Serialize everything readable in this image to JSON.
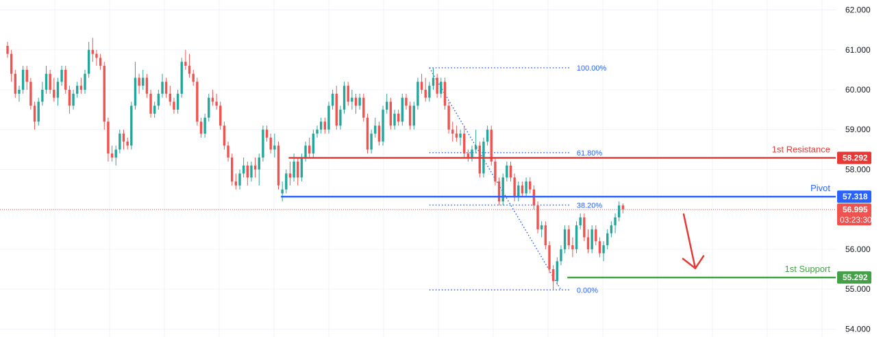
{
  "chart_data": {
    "type": "candlestick",
    "y_axis": {
      "range": [
        53.8,
        62.25
      ],
      "ticks": [
        "62.000",
        "61.000",
        "60.000",
        "59.000",
        "58.000",
        "57.000",
        "56.000",
        "55.000",
        "54.000"
      ]
    },
    "grid": true,
    "colors": {
      "up": "#26a69a",
      "down": "#ef5350",
      "grid": "#f0f3fa",
      "fib": "#2962ff",
      "resistance": "#e53935",
      "pivot": "#2962ff",
      "support": "#43a047",
      "arrow": "#e53935"
    },
    "current_price": {
      "value": "56.995",
      "countdown": "03:23:30",
      "price": 56.995
    },
    "levels": [
      {
        "key": "resistance",
        "label": "1st Resistance",
        "value_text": "58.292",
        "value": 58.292,
        "start_bar": 73
      },
      {
        "key": "pivot",
        "label": "Pivot",
        "value_text": "57.318",
        "value": 57.318,
        "start_bar": 71
      },
      {
        "key": "support",
        "label": "1st Support",
        "value_text": "55.292",
        "value": 55.292,
        "start_bar": 145
      }
    ],
    "fibonacci": {
      "from_bar": 109,
      "to_bar": 143,
      "high": 60.55,
      "low": 54.98,
      "levels": [
        {
          "label": "100.00%",
          "ratio": 1.0
        },
        {
          "label": "61.80%",
          "ratio": 0.618
        },
        {
          "label": "38.20%",
          "ratio": 0.382
        },
        {
          "label": "0.00%",
          "ratio": 0.0
        }
      ]
    },
    "candles": [
      [
        61.1,
        61.2,
        60.8,
        60.9
      ],
      [
        60.9,
        61.0,
        60.2,
        60.4
      ],
      [
        60.4,
        60.5,
        59.8,
        59.9
      ],
      [
        59.9,
        60.1,
        59.7,
        60.0
      ],
      [
        60.0,
        60.6,
        59.9,
        60.5
      ],
      [
        60.5,
        60.6,
        60.0,
        60.2
      ],
      [
        60.2,
        60.3,
        59.5,
        59.6
      ],
      [
        59.6,
        59.7,
        59.0,
        59.2
      ],
      [
        59.2,
        59.8,
        59.1,
        59.7
      ],
      [
        59.7,
        60.2,
        59.6,
        60.0
      ],
      [
        60.0,
        60.6,
        59.9,
        60.4
      ],
      [
        60.4,
        60.5,
        59.9,
        60.0
      ],
      [
        60.0,
        60.3,
        59.7,
        59.8
      ],
      [
        59.8,
        60.3,
        59.6,
        60.2
      ],
      [
        60.2,
        60.6,
        60.1,
        60.5
      ],
      [
        60.5,
        60.6,
        59.9,
        60.0
      ],
      [
        60.0,
        60.1,
        59.4,
        59.6
      ],
      [
        59.6,
        60.0,
        59.5,
        59.9
      ],
      [
        59.9,
        60.2,
        59.8,
        60.1
      ],
      [
        60.1,
        60.3,
        59.9,
        60.0
      ],
      [
        60.0,
        60.5,
        59.9,
        60.4
      ],
      [
        60.4,
        61.2,
        60.3,
        61.0
      ],
      [
        61.0,
        61.3,
        60.7,
        60.9
      ],
      [
        60.9,
        61.0,
        60.6,
        60.8
      ],
      [
        60.8,
        60.9,
        60.5,
        60.6
      ],
      [
        60.6,
        60.7,
        59.0,
        59.2
      ],
      [
        59.2,
        59.3,
        58.2,
        58.4
      ],
      [
        58.4,
        58.6,
        58.2,
        58.3
      ],
      [
        58.3,
        58.6,
        58.1,
        58.5
      ],
      [
        58.5,
        59.0,
        58.4,
        58.9
      ],
      [
        58.9,
        59.0,
        58.5,
        58.7
      ],
      [
        58.7,
        58.8,
        58.5,
        58.6
      ],
      [
        58.6,
        59.7,
        58.5,
        59.6
      ],
      [
        59.6,
        60.7,
        59.5,
        60.3
      ],
      [
        60.3,
        60.4,
        59.9,
        60.1
      ],
      [
        60.1,
        60.5,
        60.0,
        60.3
      ],
      [
        60.3,
        60.4,
        59.8,
        59.9
      ],
      [
        59.9,
        60.0,
        59.3,
        59.4
      ],
      [
        59.4,
        59.7,
        59.3,
        59.6
      ],
      [
        59.6,
        60.0,
        59.5,
        59.9
      ],
      [
        59.9,
        60.4,
        59.8,
        60.2
      ],
      [
        60.2,
        60.3,
        59.8,
        59.9
      ],
      [
        59.9,
        60.1,
        59.6,
        59.7
      ],
      [
        59.7,
        59.8,
        59.4,
        59.5
      ],
      [
        59.5,
        60.0,
        59.4,
        59.9
      ],
      [
        59.9,
        60.8,
        59.8,
        60.7
      ],
      [
        60.7,
        61.0,
        60.5,
        60.6
      ],
      [
        60.6,
        60.9,
        60.3,
        60.4
      ],
      [
        60.4,
        60.5,
        60.1,
        60.2
      ],
      [
        60.2,
        60.3,
        59.1,
        59.2
      ],
      [
        59.2,
        59.3,
        58.8,
        58.9
      ],
      [
        58.9,
        59.4,
        58.8,
        59.3
      ],
      [
        59.3,
        59.9,
        59.2,
        59.8
      ],
      [
        59.8,
        60.0,
        59.6,
        59.7
      ],
      [
        59.7,
        59.9,
        59.5,
        59.6
      ],
      [
        59.6,
        59.7,
        59.0,
        59.1
      ],
      [
        59.1,
        59.2,
        58.5,
        58.6
      ],
      [
        58.6,
        58.7,
        58.2,
        58.3
      ],
      [
        58.3,
        58.4,
        57.6,
        57.7
      ],
      [
        57.7,
        57.9,
        57.5,
        57.6
      ],
      [
        57.6,
        58.0,
        57.5,
        57.9
      ],
      [
        57.9,
        58.3,
        57.8,
        58.1
      ],
      [
        58.1,
        58.2,
        57.6,
        57.8
      ],
      [
        57.8,
        58.2,
        57.7,
        58.1
      ],
      [
        58.1,
        58.3,
        57.8,
        58.0
      ],
      [
        58.0,
        58.4,
        57.6,
        58.3
      ],
      [
        58.3,
        59.1,
        58.2,
        59.0
      ],
      [
        59.0,
        59.1,
        58.7,
        58.8
      ],
      [
        58.8,
        58.9,
        58.4,
        58.5
      ],
      [
        58.5,
        58.9,
        58.3,
        58.6
      ],
      [
        58.6,
        58.7,
        57.5,
        57.6
      ],
      [
        57.4,
        57.7,
        57.2,
        57.5
      ],
      [
        57.5,
        58.0,
        57.4,
        57.9
      ],
      [
        57.9,
        58.2,
        57.6,
        57.8
      ],
      [
        57.8,
        58.4,
        57.7,
        58.2
      ],
      [
        58.2,
        58.3,
        57.6,
        57.8
      ],
      [
        57.8,
        58.4,
        57.7,
        58.3
      ],
      [
        58.3,
        58.7,
        58.2,
        58.6
      ],
      [
        58.6,
        58.8,
        58.3,
        58.4
      ],
      [
        58.4,
        59.0,
        58.3,
        58.9
      ],
      [
        58.9,
        59.1,
        58.8,
        59.0
      ],
      [
        59.0,
        59.3,
        58.9,
        59.2
      ],
      [
        59.2,
        59.3,
        58.9,
        59.0
      ],
      [
        59.0,
        59.7,
        58.9,
        59.6
      ],
      [
        59.6,
        60.0,
        59.5,
        59.9
      ],
      [
        59.9,
        60.1,
        59.0,
        59.1
      ],
      [
        59.1,
        59.6,
        59.0,
        59.5
      ],
      [
        59.5,
        60.2,
        59.4,
        60.1
      ],
      [
        60.1,
        60.2,
        59.6,
        59.7
      ],
      [
        59.7,
        60.0,
        59.5,
        59.8
      ],
      [
        59.8,
        59.9,
        59.4,
        59.6
      ],
      [
        59.6,
        59.9,
        59.5,
        59.8
      ],
      [
        59.8,
        59.9,
        59.2,
        59.3
      ],
      [
        59.3,
        59.4,
        58.4,
        58.5
      ],
      [
        58.5,
        59.0,
        58.4,
        58.9
      ],
      [
        58.9,
        59.3,
        58.8,
        59.1
      ],
      [
        59.1,
        59.2,
        58.6,
        58.7
      ],
      [
        58.7,
        59.6,
        58.6,
        59.5
      ],
      [
        59.5,
        59.9,
        59.4,
        59.7
      ],
      [
        59.7,
        59.8,
        59.0,
        59.1
      ],
      [
        59.1,
        59.5,
        59.0,
        59.4
      ],
      [
        59.4,
        59.5,
        59.1,
        59.2
      ],
      [
        59.2,
        59.9,
        59.1,
        59.8
      ],
      [
        59.8,
        59.9,
        59.5,
        59.6
      ],
      [
        59.6,
        59.7,
        59.0,
        59.1
      ],
      [
        59.1,
        59.7,
        59.0,
        59.6
      ],
      [
        59.6,
        60.3,
        59.5,
        60.2
      ],
      [
        60.2,
        60.4,
        59.9,
        60.0
      ],
      [
        60.0,
        60.3,
        59.7,
        59.8
      ],
      [
        59.8,
        60.2,
        59.7,
        60.1
      ],
      [
        60.1,
        60.55,
        60.0,
        60.3
      ],
      [
        60.3,
        60.4,
        59.8,
        59.9
      ],
      [
        59.9,
        60.3,
        59.8,
        60.2
      ],
      [
        60.2,
        60.3,
        59.5,
        59.6
      ],
      [
        59.6,
        59.7,
        58.9,
        59.0
      ],
      [
        59.0,
        59.2,
        58.7,
        58.9
      ],
      [
        58.9,
        59.1,
        58.7,
        58.8
      ],
      [
        58.8,
        59.0,
        58.6,
        58.9
      ],
      [
        58.9,
        59.1,
        58.3,
        58.4
      ],
      [
        58.4,
        58.5,
        58.2,
        58.3
      ],
      [
        58.3,
        58.6,
        58.2,
        58.5
      ],
      [
        58.5,
        59.0,
        58.4,
        58.6
      ],
      [
        58.6,
        58.7,
        57.8,
        57.9
      ],
      [
        57.9,
        58.8,
        57.8,
        58.7
      ],
      [
        58.7,
        59.1,
        58.6,
        59.0
      ],
      [
        59.0,
        59.1,
        58.1,
        58.2
      ],
      [
        58.2,
        58.3,
        57.6,
        57.7
      ],
      [
        57.7,
        57.8,
        57.1,
        57.2
      ],
      [
        57.2,
        57.9,
        57.1,
        57.8
      ],
      [
        57.8,
        58.2,
        57.7,
        58.1
      ],
      [
        58.1,
        58.2,
        57.7,
        57.8
      ],
      [
        57.8,
        57.9,
        57.2,
        57.3
      ],
      [
        57.3,
        57.7,
        57.2,
        57.6
      ],
      [
        57.6,
        57.7,
        57.3,
        57.4
      ],
      [
        57.4,
        57.8,
        57.3,
        57.7
      ],
      [
        57.7,
        57.8,
        57.4,
        57.5
      ],
      [
        57.5,
        57.6,
        57.0,
        57.1
      ],
      [
        57.1,
        57.2,
        56.4,
        56.5
      ],
      [
        56.5,
        56.7,
        56.3,
        56.6
      ],
      [
        56.6,
        56.7,
        56.0,
        56.1
      ],
      [
        56.1,
        56.2,
        55.4,
        55.5
      ],
      [
        55.5,
        55.6,
        55.0,
        55.2
      ],
      [
        55.2,
        55.8,
        55.1,
        55.7
      ],
      [
        55.7,
        56.1,
        55.6,
        56.0
      ],
      [
        56.0,
        56.6,
        55.9,
        56.5
      ],
      [
        56.5,
        56.6,
        56.0,
        56.1
      ],
      [
        56.1,
        56.3,
        55.8,
        56.0
      ],
      [
        56.0,
        56.7,
        55.9,
        56.6
      ],
      [
        56.6,
        56.9,
        56.5,
        56.8
      ],
      [
        56.8,
        56.9,
        56.2,
        56.3
      ],
      [
        56.3,
        56.5,
        55.9,
        56.0
      ],
      [
        56.0,
        56.6,
        55.9,
        56.5
      ],
      [
        56.5,
        56.6,
        56.1,
        56.2
      ],
      [
        56.2,
        56.3,
        55.8,
        55.9
      ],
      [
        55.9,
        56.2,
        55.7,
        56.1
      ],
      [
        56.1,
        56.5,
        56.0,
        56.4
      ],
      [
        56.4,
        56.7,
        56.3,
        56.6
      ],
      [
        56.6,
        56.9,
        56.4,
        56.8
      ],
      [
        56.8,
        57.2,
        56.7,
        57.1
      ],
      [
        57.1,
        57.15,
        56.9,
        57.0
      ]
    ],
    "forecast_arrow": {
      "from_price": 56.95,
      "to_price": 55.35,
      "direction": "down"
    }
  }
}
